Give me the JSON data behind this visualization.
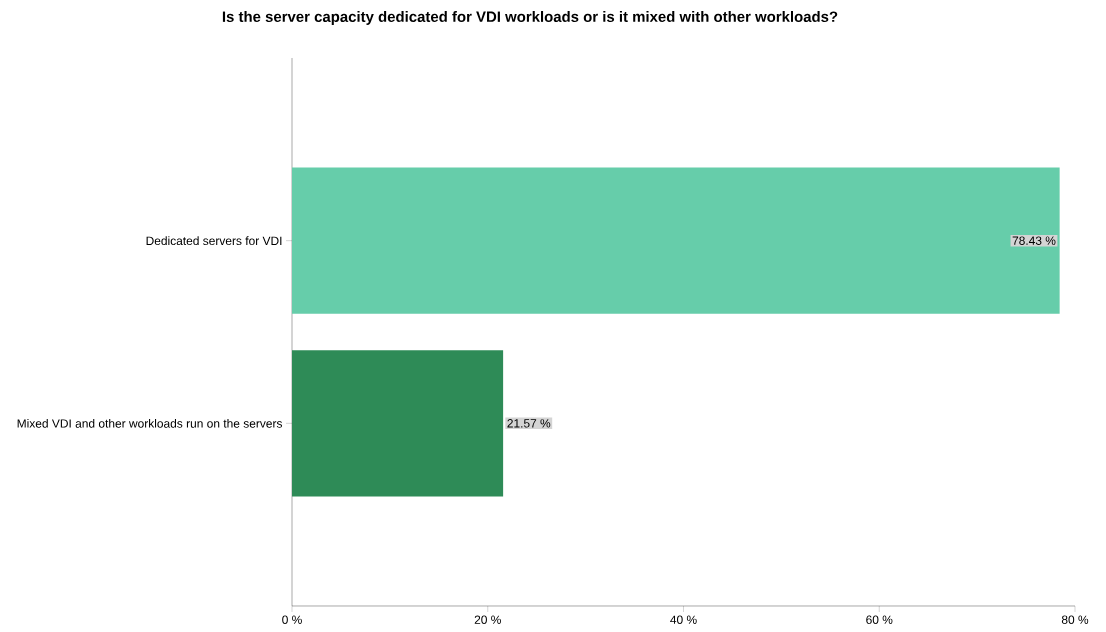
{
  "chart_data": {
    "type": "bar",
    "orientation": "horizontal",
    "title": "Is the server capacity dedicated for VDI workloads or is it mixed with other workloads?",
    "categories": [
      "Dedicated servers for VDI",
      "Mixed VDI and other workloads run on the servers"
    ],
    "values": [
      78.43,
      21.57
    ],
    "colors": [
      "#66cdaa",
      "#2e8b57"
    ],
    "value_labels": [
      "78.43 %",
      "21.57 %"
    ],
    "xlim": [
      0,
      80
    ],
    "xticks": [
      {
        "value": 0,
        "label": "0 %"
      },
      {
        "value": 20,
        "label": "20 %"
      },
      {
        "value": 40,
        "label": "40 %"
      },
      {
        "value": 60,
        "label": "60 %"
      },
      {
        "value": 80,
        "label": "80 %"
      }
    ]
  }
}
